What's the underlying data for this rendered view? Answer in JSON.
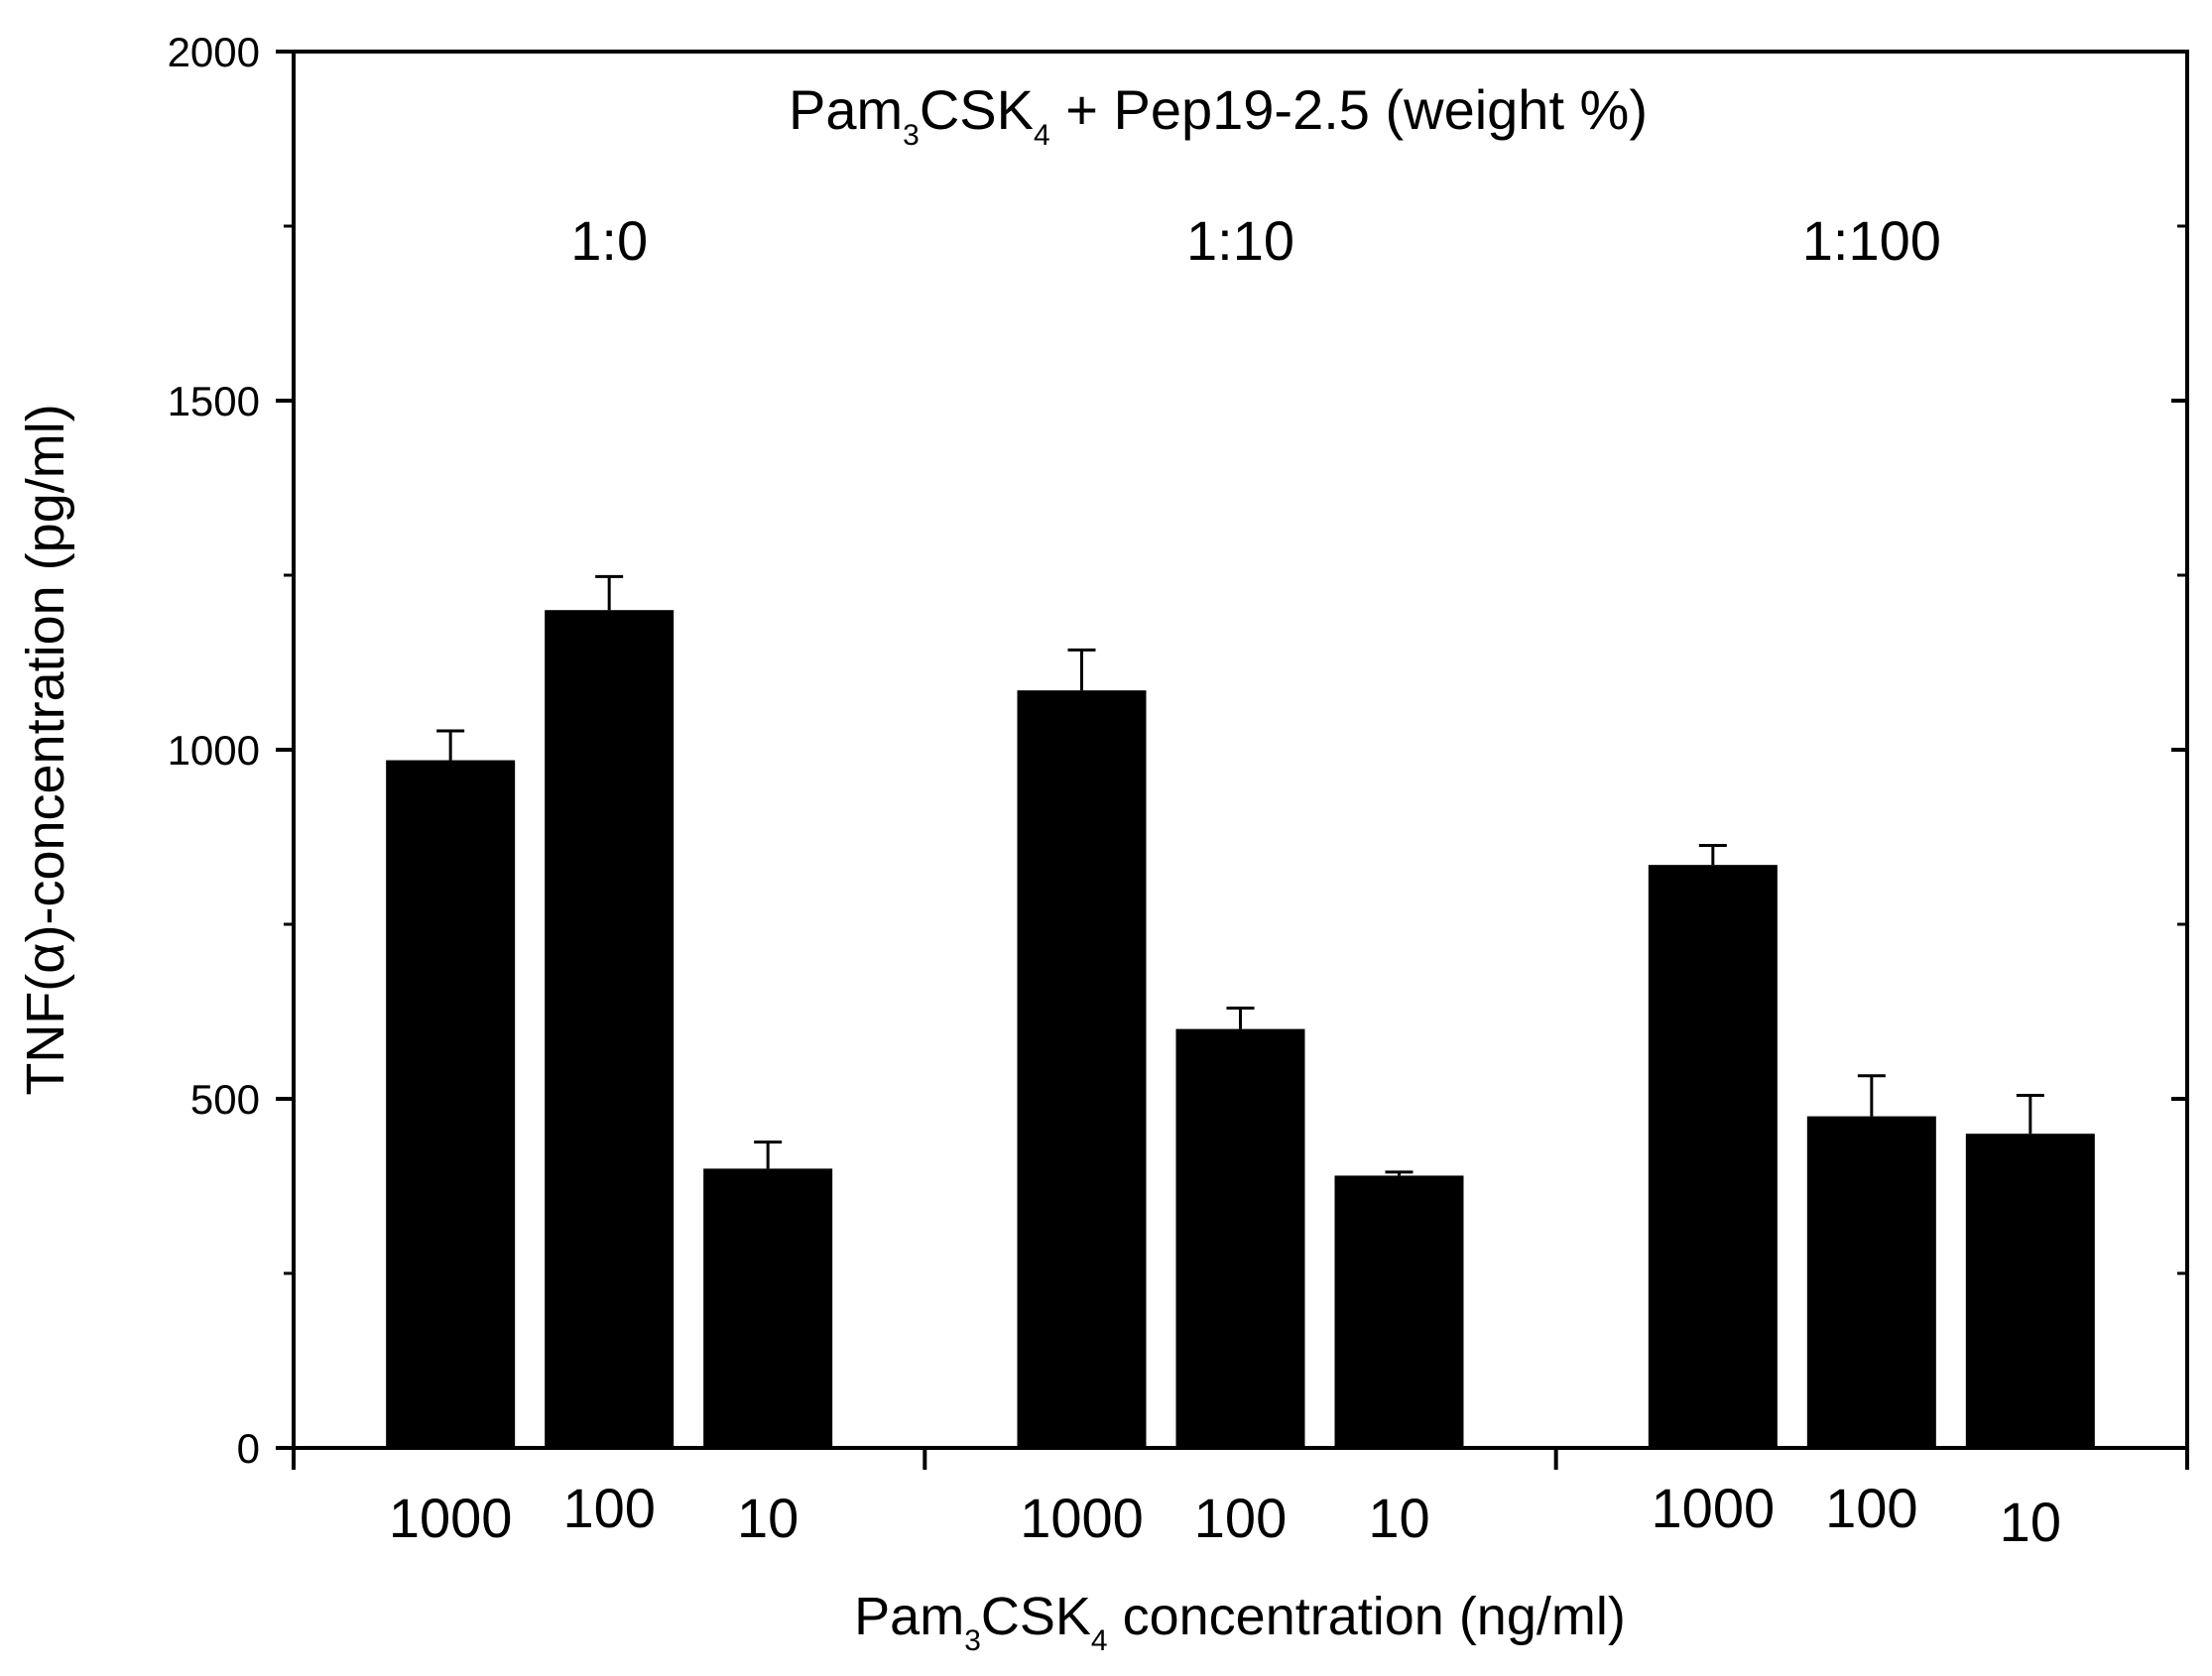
{
  "chart_data": {
    "type": "bar",
    "title_parts": [
      "Pam",
      "3",
      "CSK",
      "4",
      " + Pep19-2.5 (weight %)"
    ],
    "ylabel": "TNF(α)-concentration (pg/ml)",
    "xlabel_parts": [
      "Pam",
      "3",
      "CSK",
      "4",
      " concentration (ng/ml)"
    ],
    "ylim": [
      0,
      2000
    ],
    "yticks": [
      0,
      500,
      1000,
      1500,
      2000
    ],
    "grid": false,
    "groups": [
      {
        "name": "1:0",
        "categories": [
          "1000",
          "100",
          "10"
        ],
        "values": [
          985,
          1200,
          400
        ],
        "errors": [
          42,
          48,
          38
        ]
      },
      {
        "name": "1:10",
        "categories": [
          "1000",
          "100",
          "10"
        ],
        "values": [
          1085,
          600,
          390
        ],
        "errors": [
          58,
          30,
          5
        ]
      },
      {
        "name": "1:100",
        "categories": [
          "1000",
          "100",
          "10"
        ],
        "values": [
          835,
          475,
          450
        ],
        "errors": [
          28,
          58,
          55
        ]
      }
    ],
    "bar_color": "#000000"
  }
}
